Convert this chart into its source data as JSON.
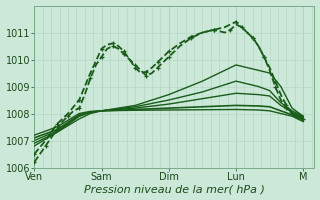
{
  "background_color": "#cce8d8",
  "plot_bg_color": "#cce8d8",
  "grid_color_v": "#b0d4c0",
  "grid_color_h": "#b8d8c8",
  "line_color": "#1a5c1a",
  "ylim": [
    1006,
    1012
  ],
  "ytick_vals": [
    1006,
    1007,
    1008,
    1009,
    1010,
    1011
  ],
  "xlim": [
    0,
    100
  ],
  "xlabel": "Pression niveau de la mer( hPa )",
  "xlabel_fontsize": 8,
  "xtick_labels": [
    "Ven",
    "Sam",
    "Dim",
    "Lun",
    "M"
  ],
  "xtick_positions": [
    0,
    24,
    48,
    72,
    96
  ],
  "lines": [
    {
      "x": [
        0,
        2,
        4,
        6,
        8,
        10,
        12,
        14,
        16,
        18,
        20,
        22,
        24,
        26,
        28,
        30,
        32,
        34,
        36,
        38,
        40,
        42,
        44,
        46,
        48,
        52,
        56,
        60,
        64,
        68,
        70,
        72,
        74,
        76,
        78,
        80,
        82,
        84,
        86,
        88,
        90,
        92,
        94,
        96
      ],
      "y": [
        1006.2,
        1006.5,
        1006.8,
        1007.1,
        1007.4,
        1007.7,
        1007.9,
        1008.1,
        1008.2,
        1008.7,
        1009.3,
        1009.8,
        1010.1,
        1010.4,
        1010.5,
        1010.4,
        1010.2,
        1010.0,
        1009.8,
        1009.6,
        1009.4,
        1009.5,
        1009.7,
        1009.9,
        1010.1,
        1010.5,
        1010.8,
        1011.0,
        1011.1,
        1011.0,
        1011.1,
        1011.3,
        1011.2,
        1011.0,
        1010.8,
        1010.5,
        1010.1,
        1009.6,
        1009.0,
        1008.5,
        1008.2,
        1008.0,
        1007.9,
        1007.8
      ],
      "style": "dashed_marker",
      "lw": 1.3
    },
    {
      "x": [
        0,
        4,
        8,
        12,
        16,
        20,
        24,
        26,
        28,
        30,
        32,
        34,
        36,
        38,
        40,
        42,
        44,
        46,
        48,
        52,
        56,
        60,
        64,
        68,
        72,
        76,
        78,
        80,
        82,
        84,
        86,
        88,
        90,
        92,
        96
      ],
      "y": [
        1006.5,
        1007.0,
        1007.6,
        1008.0,
        1008.5,
        1009.5,
        1010.4,
        1010.55,
        1010.6,
        1010.5,
        1010.3,
        1010.0,
        1009.7,
        1009.5,
        1009.55,
        1009.7,
        1009.9,
        1010.1,
        1010.3,
        1010.6,
        1010.85,
        1011.0,
        1011.1,
        1011.2,
        1011.4,
        1011.0,
        1010.8,
        1010.5,
        1010.1,
        1009.7,
        1009.2,
        1008.7,
        1008.3,
        1008.0,
        1007.8
      ],
      "style": "dashed_marker",
      "lw": 1.3
    },
    {
      "x": [
        0,
        8,
        16,
        20,
        24,
        36,
        48,
        60,
        72,
        80,
        84,
        88,
        92,
        96
      ],
      "y": [
        1006.8,
        1007.3,
        1007.8,
        1008.0,
        1008.1,
        1008.3,
        1008.7,
        1009.2,
        1009.8,
        1009.6,
        1009.5,
        1009.0,
        1008.2,
        1007.9
      ],
      "style": "solid",
      "lw": 1.0
    },
    {
      "x": [
        0,
        8,
        16,
        20,
        24,
        36,
        48,
        60,
        72,
        80,
        84,
        88,
        92,
        96
      ],
      "y": [
        1006.9,
        1007.3,
        1007.9,
        1008.05,
        1008.1,
        1008.25,
        1008.5,
        1008.8,
        1009.2,
        1009.0,
        1008.85,
        1008.4,
        1008.1,
        1007.9
      ],
      "style": "solid",
      "lw": 1.0
    },
    {
      "x": [
        0,
        8,
        16,
        20,
        24,
        36,
        48,
        60,
        72,
        80,
        84,
        88,
        92,
        96
      ],
      "y": [
        1007.0,
        1007.35,
        1007.9,
        1008.05,
        1008.1,
        1008.2,
        1008.35,
        1008.55,
        1008.75,
        1008.7,
        1008.65,
        1008.3,
        1008.05,
        1007.85
      ],
      "style": "solid",
      "lw": 1.0
    },
    {
      "x": [
        0,
        8,
        16,
        20,
        24,
        36,
        48,
        60,
        72,
        80,
        84,
        88,
        92,
        96
      ],
      "y": [
        1007.1,
        1007.4,
        1007.95,
        1008.05,
        1008.1,
        1008.15,
        1008.2,
        1008.25,
        1008.3,
        1008.28,
        1008.25,
        1008.1,
        1007.95,
        1007.75
      ],
      "style": "solid",
      "lw": 1.2
    },
    {
      "x": [
        0,
        8,
        16,
        20,
        24,
        36,
        48,
        60,
        72,
        80,
        84,
        88,
        92,
        96
      ],
      "y": [
        1007.2,
        1007.5,
        1008.0,
        1008.08,
        1008.1,
        1008.12,
        1008.13,
        1008.14,
        1008.15,
        1008.13,
        1008.1,
        1008.0,
        1007.9,
        1007.7
      ],
      "style": "solid",
      "lw": 1.0
    }
  ]
}
